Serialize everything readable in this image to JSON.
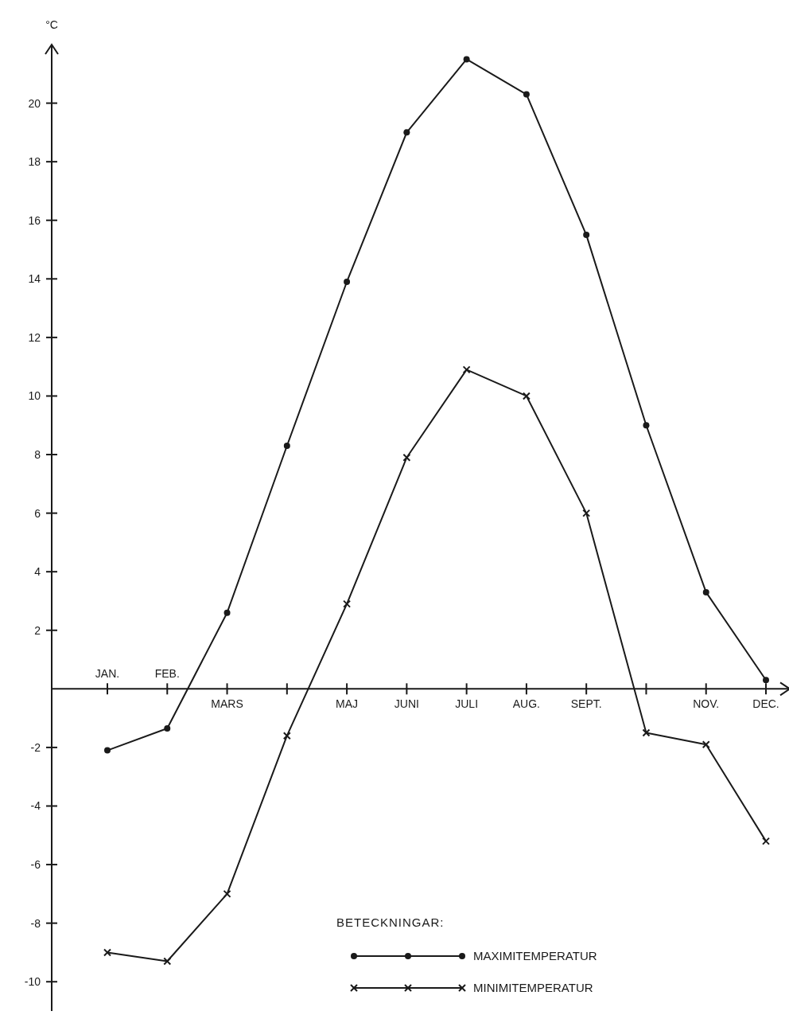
{
  "chart_data": {
    "type": "line",
    "ylabel": "°C",
    "legend_title": "BETECKNINGAR:",
    "legend": "bottom right",
    "grid": false,
    "line_style": "solid",
    "categories": [
      "JAN.",
      "FEB.",
      "MARS",
      null,
      "MAJ",
      "JUNI",
      "JULI",
      "AUG.",
      "SEPT.",
      null,
      "NOV.",
      "DEC."
    ],
    "ylim": [
      -11,
      22
    ],
    "yticks": [
      -10,
      -8,
      -6,
      -4,
      -2,
      2,
      4,
      6,
      8,
      10,
      12,
      14,
      16,
      18,
      20
    ],
    "series": [
      {
        "name": "MAXIMITEMPERATUR",
        "color": "#1a1a1a",
        "marker": "circle",
        "values": [
          -2.1,
          -1.35,
          2.6,
          8.3,
          13.9,
          19.0,
          21.5,
          20.3,
          15.5,
          9.0,
          3.3,
          0.3
        ]
      },
      {
        "name": "MINIMITEMPERATUR",
        "color": "#1a1a1a",
        "marker": "cross",
        "values": [
          -9.0,
          -9.3,
          -7.0,
          -1.6,
          2.9,
          7.9,
          10.9,
          10.0,
          6.0,
          -1.5,
          -1.9,
          -5.2
        ]
      }
    ]
  }
}
